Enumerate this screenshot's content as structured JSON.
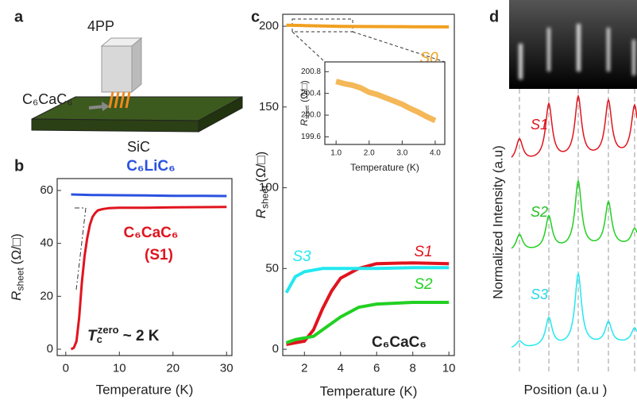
{
  "panel_labels": [
    "a",
    "b",
    "c",
    "d"
  ],
  "panel_a": {
    "probe": "4PP",
    "sample": "C₆CaC₆",
    "substrate": "SiC"
  },
  "chart_data": [
    {
      "type": "line",
      "x_label": "Temperature (K)",
      "y_label": [
        "R",
        "sheet",
        "(Ω/□)"
      ],
      "annotation": [
        "T",
        "c",
        "zero",
        "~ 2 K"
      ],
      "series_note": "(S1)",
      "xlim": [
        -1.6,
        31
      ],
      "ylim": [
        -2.4,
        64.5
      ],
      "xticks": [
        0,
        10,
        20,
        30
      ],
      "yticks": [
        0,
        20,
        40,
        60
      ],
      "series": [
        {
          "name": "C₆LiC₆",
          "color": "#2a52e0",
          "x": [
            1,
            5,
            10,
            15,
            20,
            25,
            30
          ],
          "values": [
            58.5,
            58.3,
            58.2,
            58.1,
            58,
            58,
            57.9
          ]
        },
        {
          "name": "C₆CaC₆",
          "color": "#e0141e",
          "x": [
            1,
            1.5,
            2,
            2.5,
            3,
            3.5,
            4,
            4.5,
            5,
            5.5,
            6,
            7,
            8,
            10,
            15,
            20,
            25,
            30
          ],
          "values": [
            0,
            0.5,
            3,
            12,
            25,
            35,
            42,
            47,
            50,
            51.5,
            52.5,
            53,
            53.3,
            53.5,
            53.5,
            53.6,
            53.7,
            53.8
          ]
        }
      ]
    },
    {
      "type": "line",
      "x_label": "Temperature (K)",
      "y_label": [
        "R",
        "sheet",
        "(Ω/□)"
      ],
      "annotation": "C₆CaC₆",
      "xlim": [
        0.8,
        10.3
      ],
      "ylim": [
        -3.9,
        207.4
      ],
      "xticks": [
        2,
        4,
        6,
        8,
        10
      ],
      "yticks": [
        0,
        50,
        100,
        150,
        200
      ],
      "series": [
        {
          "name": "S0",
          "color": "#f0a020",
          "x": [
            1,
            2,
            4,
            6,
            8,
            10
          ],
          "values": [
            200.6,
            200.4,
            199.9,
            199.8,
            199.7,
            199.6
          ]
        },
        {
          "name": "S1",
          "color": "#e0141e",
          "x": [
            1,
            1.5,
            2,
            2.5,
            3,
            3.5,
            4,
            5,
            6,
            8,
            10
          ],
          "values": [
            3,
            4,
            5,
            12,
            25,
            36,
            44,
            50,
            53,
            53.5,
            53
          ]
        },
        {
          "name": "S2",
          "color": "#22d022",
          "x": [
            1,
            1.5,
            2,
            2.5,
            3,
            3.5,
            4,
            5,
            6,
            8,
            10
          ],
          "values": [
            4,
            6,
            7,
            8,
            12,
            16,
            20,
            26,
            28,
            29,
            29
          ]
        },
        {
          "name": "S3",
          "color": "#22e8f0",
          "x": [
            1,
            1.5,
            2,
            2.5,
            3,
            4,
            6,
            8,
            10
          ],
          "values": [
            35,
            45,
            48,
            49,
            50,
            50,
            50,
            50.5,
            50.5
          ]
        }
      ]
    },
    {
      "type": "line",
      "x_label": "Temperature (K)",
      "y_label": [
        "R",
        "sheet",
        "(Ω/□)"
      ],
      "xlim": [
        0.66,
        4.29
      ],
      "ylim": [
        199.46,
        200.98
      ],
      "xticks": [
        {
          "value": 1,
          "label": "1.0"
        },
        {
          "value": 2,
          "label": "2.0"
        },
        {
          "value": 3,
          "label": "3.0"
        },
        {
          "value": 4,
          "label": "4.0"
        }
      ],
      "yticks": [
        199.6,
        {
          "value": 200,
          "label": "200.0"
        },
        200.4,
        200.8
      ],
      "series": [
        {
          "name": null,
          "color": "#f0a020",
          "x": [
            1,
            1.25,
            1.5,
            1.75,
            2,
            2.25,
            2.5,
            2.75,
            3,
            3.25,
            3.5,
            3.75,
            4
          ],
          "values": [
            200.62,
            200.58,
            200.55,
            200.5,
            200.42,
            200.38,
            200.32,
            200.26,
            200.2,
            200.12,
            200.05,
            199.97,
            199.9
          ]
        }
      ]
    }
  ],
  "panel_d": {
    "y_label": "Normalized Intensity (a.u)",
    "x_label": "Position (a.u )",
    "curves": [
      "S1",
      "S2",
      "S3"
    ]
  }
}
